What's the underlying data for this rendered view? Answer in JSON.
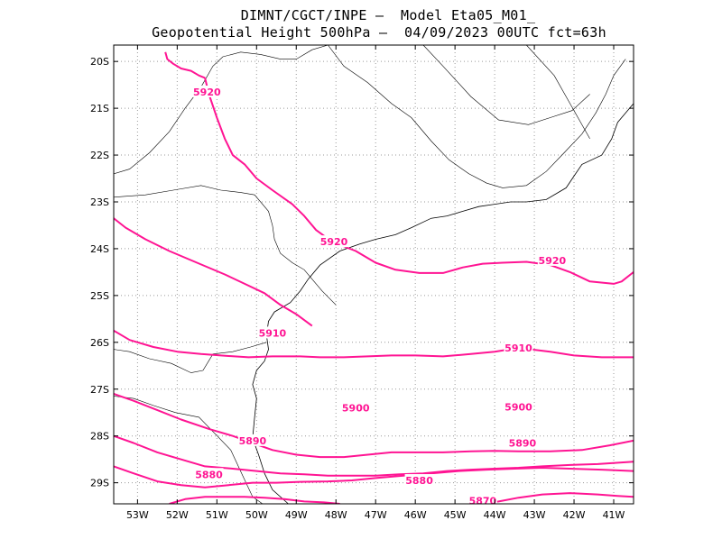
{
  "header": {
    "line1": "DIMNT/CGCT/INPE –  Model Eta05_M01_",
    "line2": "Geopotential Height 500hPa –  04/09/2023 00UTC fct=63h"
  },
  "chart_data": {
    "type": "contour-map",
    "title": "Geopotential Height 500hPa",
    "model": "Eta05_M01_",
    "source": "DIMNT/CGCT/INPE",
    "init_time": "04/09/2023 00UTC",
    "forecast_hour": "fct=63h",
    "lon_range": [
      -53.6,
      -40.5
    ],
    "lat_range": [
      -29.45,
      -19.65
    ],
    "x_ticks": [
      -53,
      -52,
      -51,
      -50,
      -49,
      -48,
      -47,
      -46,
      -45,
      -44,
      -43,
      -42,
      -41
    ],
    "x_tick_labels": [
      "53W",
      "52W",
      "51W",
      "50W",
      "49W",
      "48W",
      "47W",
      "46W",
      "45W",
      "44W",
      "43W",
      "42W",
      "41W"
    ],
    "y_ticks": [
      -20,
      -21,
      -22,
      -23,
      -24,
      -25,
      -26,
      -27,
      -28,
      -29
    ],
    "y_tick_labels": [
      "20S",
      "21S",
      "22S",
      "23S",
      "24S",
      "25S",
      "26S",
      "27S",
      "28S",
      "29S"
    ],
    "grid": true,
    "contour_color": "#ff1493",
    "coast_color": "#000000",
    "contours": [
      {
        "level": 5920,
        "label": "5920",
        "points": [
          [
            -53.6,
            -23.35
          ],
          [
            -53.3,
            -23.55
          ],
          [
            -52.8,
            -23.8
          ],
          [
            -52.2,
            -24.05
          ],
          [
            -51.5,
            -24.3
          ],
          [
            -50.8,
            -24.55
          ],
          [
            -50.3,
            -24.75
          ],
          [
            -49.8,
            -24.95
          ],
          [
            -49.4,
            -25.2
          ],
          [
            -49,
            -25.4
          ],
          [
            -48.6,
            -25.65
          ]
        ]
      },
      {
        "level": 5920,
        "label": "5920",
        "points": [
          [
            -51.3,
            -20.35
          ],
          [
            -51.45,
            -20.3
          ],
          [
            -51.65,
            -20.2
          ],
          [
            -51.9,
            -20.15
          ],
          [
            -52.1,
            -20.05
          ],
          [
            -52.25,
            -19.95
          ],
          [
            -52.3,
            -19.8
          ]
        ]
      },
      {
        "level": 5920,
        "label": "5920",
        "points": [
          [
            -51.3,
            -20.35
          ],
          [
            -51.2,
            -20.7
          ],
          [
            -51,
            -21.2
          ],
          [
            -50.8,
            -21.65
          ],
          [
            -50.6,
            -22
          ],
          [
            -50.3,
            -22.2
          ],
          [
            -50,
            -22.5
          ],
          [
            -49.6,
            -22.75
          ],
          [
            -49.1,
            -23.05
          ],
          [
            -48.8,
            -23.3
          ],
          [
            -48.5,
            -23.6
          ],
          [
            -48.1,
            -23.85
          ],
          [
            -47.5,
            -24.05
          ],
          [
            -47,
            -24.3
          ],
          [
            -46.5,
            -24.45
          ],
          [
            -45.9,
            -24.52
          ],
          [
            -45.3,
            -24.52
          ],
          [
            -44.8,
            -24.4
          ],
          [
            -44.3,
            -24.32
          ],
          [
            -43.8,
            -24.3
          ],
          [
            -43.2,
            -24.28
          ],
          [
            -42.6,
            -24.35
          ],
          [
            -42.1,
            -24.5
          ],
          [
            -41.6,
            -24.7
          ],
          [
            -41,
            -24.75
          ],
          [
            -40.8,
            -24.7
          ],
          [
            -40.5,
            -24.5
          ]
        ]
      },
      {
        "level": 5910,
        "label": "5910",
        "points": [
          [
            -53.6,
            -25.75
          ],
          [
            -53.2,
            -25.95
          ],
          [
            -52.6,
            -26.1
          ],
          [
            -52,
            -26.2
          ],
          [
            -51.4,
            -26.25
          ],
          [
            -50.9,
            -26.28
          ],
          [
            -50.2,
            -26.32
          ],
          [
            -49.6,
            -26.3
          ],
          [
            -48.9,
            -26.3
          ],
          [
            -48.4,
            -26.32
          ],
          [
            -47.8,
            -26.32
          ],
          [
            -47.2,
            -26.3
          ],
          [
            -46.6,
            -26.28
          ],
          [
            -46,
            -26.28
          ],
          [
            -45.3,
            -26.3
          ],
          [
            -44.6,
            -26.25
          ],
          [
            -44,
            -26.2
          ],
          [
            -43.4,
            -26.12
          ],
          [
            -42.6,
            -26.2
          ],
          [
            -42,
            -26.28
          ],
          [
            -41.3,
            -26.32
          ],
          [
            -40.5,
            -26.32
          ]
        ]
      },
      {
        "level": 5900,
        "label": "5900",
        "points": [
          [
            -53.6,
            -27.1
          ],
          [
            -53.1,
            -27.25
          ],
          [
            -52.5,
            -27.45
          ],
          [
            -51.9,
            -27.65
          ],
          [
            -51.2,
            -27.85
          ],
          [
            -50.6,
            -28
          ],
          [
            -50.1,
            -28.15
          ],
          [
            -49.6,
            -28.3
          ],
          [
            -49,
            -28.4
          ],
          [
            -48.4,
            -28.45
          ],
          [
            -47.8,
            -28.45
          ],
          [
            -47.2,
            -28.4
          ],
          [
            -46.6,
            -28.35
          ],
          [
            -46,
            -28.35
          ],
          [
            -45.3,
            -28.35
          ],
          [
            -44.6,
            -28.33
          ],
          [
            -44,
            -28.32
          ],
          [
            -43.4,
            -28.33
          ],
          [
            -42.6,
            -28.33
          ],
          [
            -41.8,
            -28.3
          ],
          [
            -41.1,
            -28.2
          ],
          [
            -40.5,
            -28.1
          ]
        ]
      },
      {
        "level": 5890,
        "label": "5890",
        "points": [
          [
            -53.6,
            -28
          ],
          [
            -53.1,
            -28.15
          ],
          [
            -52.5,
            -28.35
          ],
          [
            -51.9,
            -28.5
          ],
          [
            -51.3,
            -28.65
          ],
          [
            -50.6,
            -28.7
          ],
          [
            -50,
            -28.75
          ],
          [
            -49.4,
            -28.8
          ],
          [
            -48.8,
            -28.82
          ],
          [
            -48.2,
            -28.85
          ],
          [
            -47.6,
            -28.85
          ],
          [
            -47,
            -28.85
          ],
          [
            -46.4,
            -28.82
          ],
          [
            -45.8,
            -28.8
          ],
          [
            -45.2,
            -28.75
          ],
          [
            -44.6,
            -28.72
          ],
          [
            -44,
            -28.7
          ],
          [
            -43.4,
            -28.68
          ],
          [
            -42.8,
            -28.65
          ],
          [
            -42.1,
            -28.62
          ],
          [
            -41.4,
            -28.6
          ],
          [
            -40.5,
            -28.55
          ]
        ]
      },
      {
        "level": 5880,
        "label": "5880",
        "points": [
          [
            -53.6,
            -28.65
          ],
          [
            -53.1,
            -28.8
          ],
          [
            -52.5,
            -28.97
          ],
          [
            -51.9,
            -29.05
          ],
          [
            -51.3,
            -29.1
          ],
          [
            -50.7,
            -29.05
          ],
          [
            -50.1,
            -29
          ],
          [
            -49.5,
            -29.0
          ],
          [
            -48.9,
            -28.98
          ],
          [
            -48.2,
            -28.97
          ],
          [
            -47.6,
            -28.95
          ],
          [
            -47,
            -28.9
          ],
          [
            -46.3,
            -28.85
          ],
          [
            -45.6,
            -28.8
          ],
          [
            -44.9,
            -28.75
          ],
          [
            -44.2,
            -28.72
          ],
          [
            -43.5,
            -28.7
          ],
          [
            -42.8,
            -28.68
          ],
          [
            -42.1,
            -28.7
          ],
          [
            -41.3,
            -28.72
          ],
          [
            -40.5,
            -28.75
          ]
        ]
      },
      {
        "level": 5870,
        "label": "5870",
        "points": [
          [
            -52.2,
            -29.45
          ],
          [
            -51.8,
            -29.35
          ],
          [
            -51.3,
            -29.3
          ],
          [
            -50.8,
            -29.3
          ],
          [
            -50.3,
            -29.3
          ],
          [
            -49.8,
            -29.32
          ],
          [
            -49.3,
            -29.35
          ],
          [
            -48.8,
            -29.4
          ],
          [
            -48.3,
            -29.42
          ],
          [
            -47.9,
            -29.45
          ]
        ]
      },
      {
        "level": 5870,
        "label": "5870",
        "points": [
          [
            -44.3,
            -29.45
          ],
          [
            -43.9,
            -29.4
          ],
          [
            -43.4,
            -29.32
          ],
          [
            -42.8,
            -29.25
          ],
          [
            -42.1,
            -29.22
          ],
          [
            -41.4,
            -29.25
          ],
          [
            -40.9,
            -29.28
          ],
          [
            -40.5,
            -29.3
          ]
        ]
      }
    ],
    "contour_labels": [
      {
        "text": "5920",
        "lon": -51.25,
        "lat": -20.65
      },
      {
        "text": "5920",
        "lon": -48.05,
        "lat": -23.85
      },
      {
        "text": "5920",
        "lon": -42.55,
        "lat": -24.25
      },
      {
        "text": "5910",
        "lon": -49.6,
        "lat": -25.8
      },
      {
        "text": "5910",
        "lon": -43.4,
        "lat": -26.12
      },
      {
        "text": "5900",
        "lon": -47.5,
        "lat": -27.4
      },
      {
        "text": "5900",
        "lon": -43.4,
        "lat": -27.38
      },
      {
        "text": "5890",
        "lon": -50.1,
        "lat": -28.1
      },
      {
        "text": "5890",
        "lon": -43.3,
        "lat": -28.15
      },
      {
        "text": "5880",
        "lon": -51.2,
        "lat": -28.82
      },
      {
        "text": "5880",
        "lon": -45.9,
        "lat": -28.95
      },
      {
        "text": "5870",
        "lon": -44.3,
        "lat": -29.38
      }
    ],
    "coastline": [
      [
        -49.2,
        -29.45
      ],
      [
        -49.6,
        -29.15
      ],
      [
        -49.8,
        -28.8
      ],
      [
        -49.95,
        -28.4
      ],
      [
        -50.1,
        -28.05
      ],
      [
        -50.05,
        -27.6
      ],
      [
        -50.0,
        -27.2
      ],
      [
        -50.1,
        -26.9
      ],
      [
        -50.0,
        -26.6
      ],
      [
        -49.8,
        -26.4
      ],
      [
        -49.7,
        -26.15
      ],
      [
        -49.75,
        -25.85
      ],
      [
        -49.7,
        -25.55
      ],
      [
        -49.55,
        -25.35
      ],
      [
        -49.15,
        -25.15
      ],
      [
        -48.9,
        -24.9
      ],
      [
        -48.7,
        -24.65
      ],
      [
        -48.4,
        -24.35
      ],
      [
        -47.9,
        -24.05
      ],
      [
        -47.4,
        -23.9
      ],
      [
        -47.0,
        -23.8
      ],
      [
        -46.5,
        -23.7
      ],
      [
        -46.1,
        -23.55
      ],
      [
        -45.6,
        -23.35
      ],
      [
        -45.2,
        -23.3
      ],
      [
        -44.8,
        -23.2
      ],
      [
        -44.4,
        -23.1
      ],
      [
        -44.0,
        -23.05
      ],
      [
        -43.6,
        -23.0
      ],
      [
        -43.2,
        -23.0
      ],
      [
        -42.7,
        -22.95
      ],
      [
        -42.2,
        -22.7
      ],
      [
        -42.0,
        -22.45
      ],
      [
        -41.8,
        -22.2
      ],
      [
        -41.3,
        -22.0
      ],
      [
        -41.05,
        -21.65
      ],
      [
        -40.9,
        -21.3
      ],
      [
        -40.5,
        -20.9
      ]
    ],
    "borders": [
      [
        [
          -53.6,
          -22.4
        ],
        [
          -53.2,
          -22.3
        ],
        [
          -52.7,
          -21.95
        ],
        [
          -52.2,
          -21.5
        ],
        [
          -51.8,
          -21.0
        ],
        [
          -51.4,
          -20.55
        ],
        [
          -51.1,
          -20.1
        ],
        [
          -50.85,
          -19.9
        ],
        [
          -50.4,
          -19.8
        ],
        [
          -49.9,
          -19.85
        ],
        [
          -49.4,
          -19.95
        ],
        [
          -49.0,
          -19.95
        ],
        [
          -48.6,
          -19.75
        ],
        [
          -48.2,
          -19.65
        ]
      ],
      [
        [
          -53.6,
          -22.9
        ],
        [
          -52.8,
          -22.85
        ],
        [
          -52.1,
          -22.75
        ],
        [
          -51.4,
          -22.65
        ],
        [
          -50.9,
          -22.75
        ],
        [
          -50.4,
          -22.8
        ],
        [
          -50.05,
          -22.85
        ],
        [
          -49.7,
          -23.2
        ],
        [
          -49.6,
          -23.5
        ],
        [
          -49.55,
          -23.8
        ],
        [
          -49.4,
          -24.1
        ],
        [
          -49.1,
          -24.3
        ],
        [
          -48.8,
          -24.45
        ],
        [
          -48.6,
          -24.65
        ],
        [
          -48.35,
          -24.9
        ],
        [
          -48.0,
          -25.2
        ]
      ],
      [
        [
          -53.6,
          -26.15
        ],
        [
          -53.2,
          -26.2
        ],
        [
          -52.7,
          -26.35
        ],
        [
          -52.15,
          -26.45
        ],
        [
          -51.65,
          -26.65
        ],
        [
          -51.35,
          -26.6
        ],
        [
          -51.1,
          -26.25
        ],
        [
          -50.6,
          -26.2
        ],
        [
          -50.15,
          -26.1
        ],
        [
          -49.75,
          -26.0
        ]
      ],
      [
        [
          -53.6,
          -27.15
        ],
        [
          -53.1,
          -27.2
        ],
        [
          -52.6,
          -27.35
        ],
        [
          -52.05,
          -27.5
        ],
        [
          -51.45,
          -27.6
        ],
        [
          -51.05,
          -27.95
        ],
        [
          -50.65,
          -28.3
        ],
        [
          -50.35,
          -28.85
        ],
        [
          -50.1,
          -29.3
        ],
        [
          -49.85,
          -29.45
        ]
      ],
      [
        [
          -48.2,
          -19.65
        ],
        [
          -47.8,
          -20.1
        ],
        [
          -47.2,
          -20.45
        ],
        [
          -46.6,
          -20.9
        ],
        [
          -46.1,
          -21.2
        ],
        [
          -45.6,
          -21.7
        ],
        [
          -45.15,
          -22.1
        ],
        [
          -44.65,
          -22.4
        ],
        [
          -44.2,
          -22.6
        ],
        [
          -43.8,
          -22.7
        ],
        [
          -43.2,
          -22.65
        ],
        [
          -42.7,
          -22.35
        ],
        [
          -42.25,
          -21.95
        ],
        [
          -41.8,
          -21.55
        ],
        [
          -41.45,
          -21.1
        ],
        [
          -41.2,
          -20.7
        ],
        [
          -41.0,
          -20.3
        ],
        [
          -40.7,
          -19.95
        ]
      ],
      [
        [
          -45.8,
          -19.65
        ],
        [
          -45.3,
          -20.1
        ],
        [
          -44.6,
          -20.75
        ],
        [
          -43.9,
          -21.25
        ],
        [
          -43.15,
          -21.35
        ],
        [
          -42.6,
          -21.2
        ],
        [
          -42.05,
          -21.05
        ],
        [
          -41.6,
          -20.7
        ]
      ],
      [
        [
          -43.2,
          -19.65
        ],
        [
          -42.5,
          -20.3
        ],
        [
          -41.9,
          -21.2
        ],
        [
          -41.6,
          -21.65
        ]
      ]
    ]
  }
}
